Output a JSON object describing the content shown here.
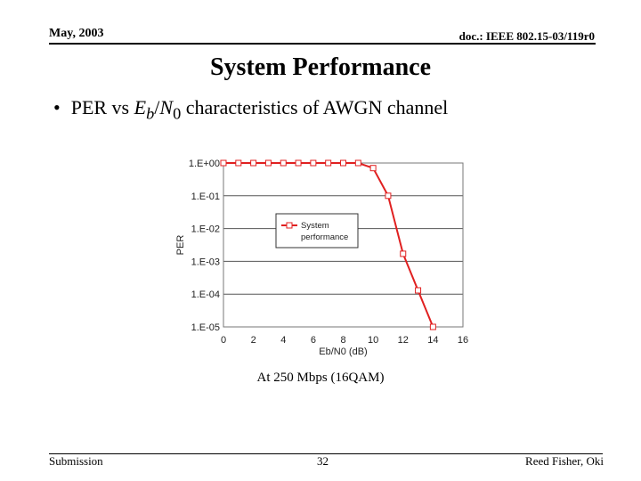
{
  "header": {
    "date": "May, 2003",
    "doc_id": "doc.: IEEE 802.15-03/119r0"
  },
  "slide": {
    "title": "System Performance",
    "bullet": {
      "pre": "PER vs ",
      "eb": "E",
      "eb_sub": "b",
      "slash": "/",
      "n0": "N",
      "n0_sub": "0",
      "post": " characteristics of AWGN channel"
    },
    "caption": "At 250 Mbps (16QAM)"
  },
  "chart_data": {
    "type": "line",
    "xlabel": "Eb/N0 (dB)",
    "ylabel": "PER",
    "xlim": [
      0,
      16
    ],
    "x_ticks": [
      "0",
      "2",
      "4",
      "6",
      "8",
      "10",
      "12",
      "14",
      "16"
    ],
    "y_scale": "log",
    "ylim": [
      1e-05,
      1
    ],
    "y_ticks": [
      "1.E+00",
      "1.E-01",
      "1.E-02",
      "1.E-03",
      "1.E-04",
      "1.E-05"
    ],
    "grid": true,
    "legend_position": "center-left",
    "series": [
      {
        "name": "System performance",
        "color": "#e02020",
        "marker": "square",
        "x": [
          0,
          1,
          2,
          3,
          4,
          5,
          6,
          7,
          8,
          9,
          10,
          11,
          12,
          13,
          14
        ],
        "y": [
          1.0,
          1.0,
          1.0,
          1.0,
          1.0,
          1.0,
          1.0,
          1.0,
          1.0,
          1.0,
          0.7,
          0.1,
          0.0017,
          0.00013,
          1e-05
        ]
      }
    ]
  },
  "footer": {
    "left": "Submission",
    "page": "32",
    "author": "Reed Fisher, Oki"
  }
}
